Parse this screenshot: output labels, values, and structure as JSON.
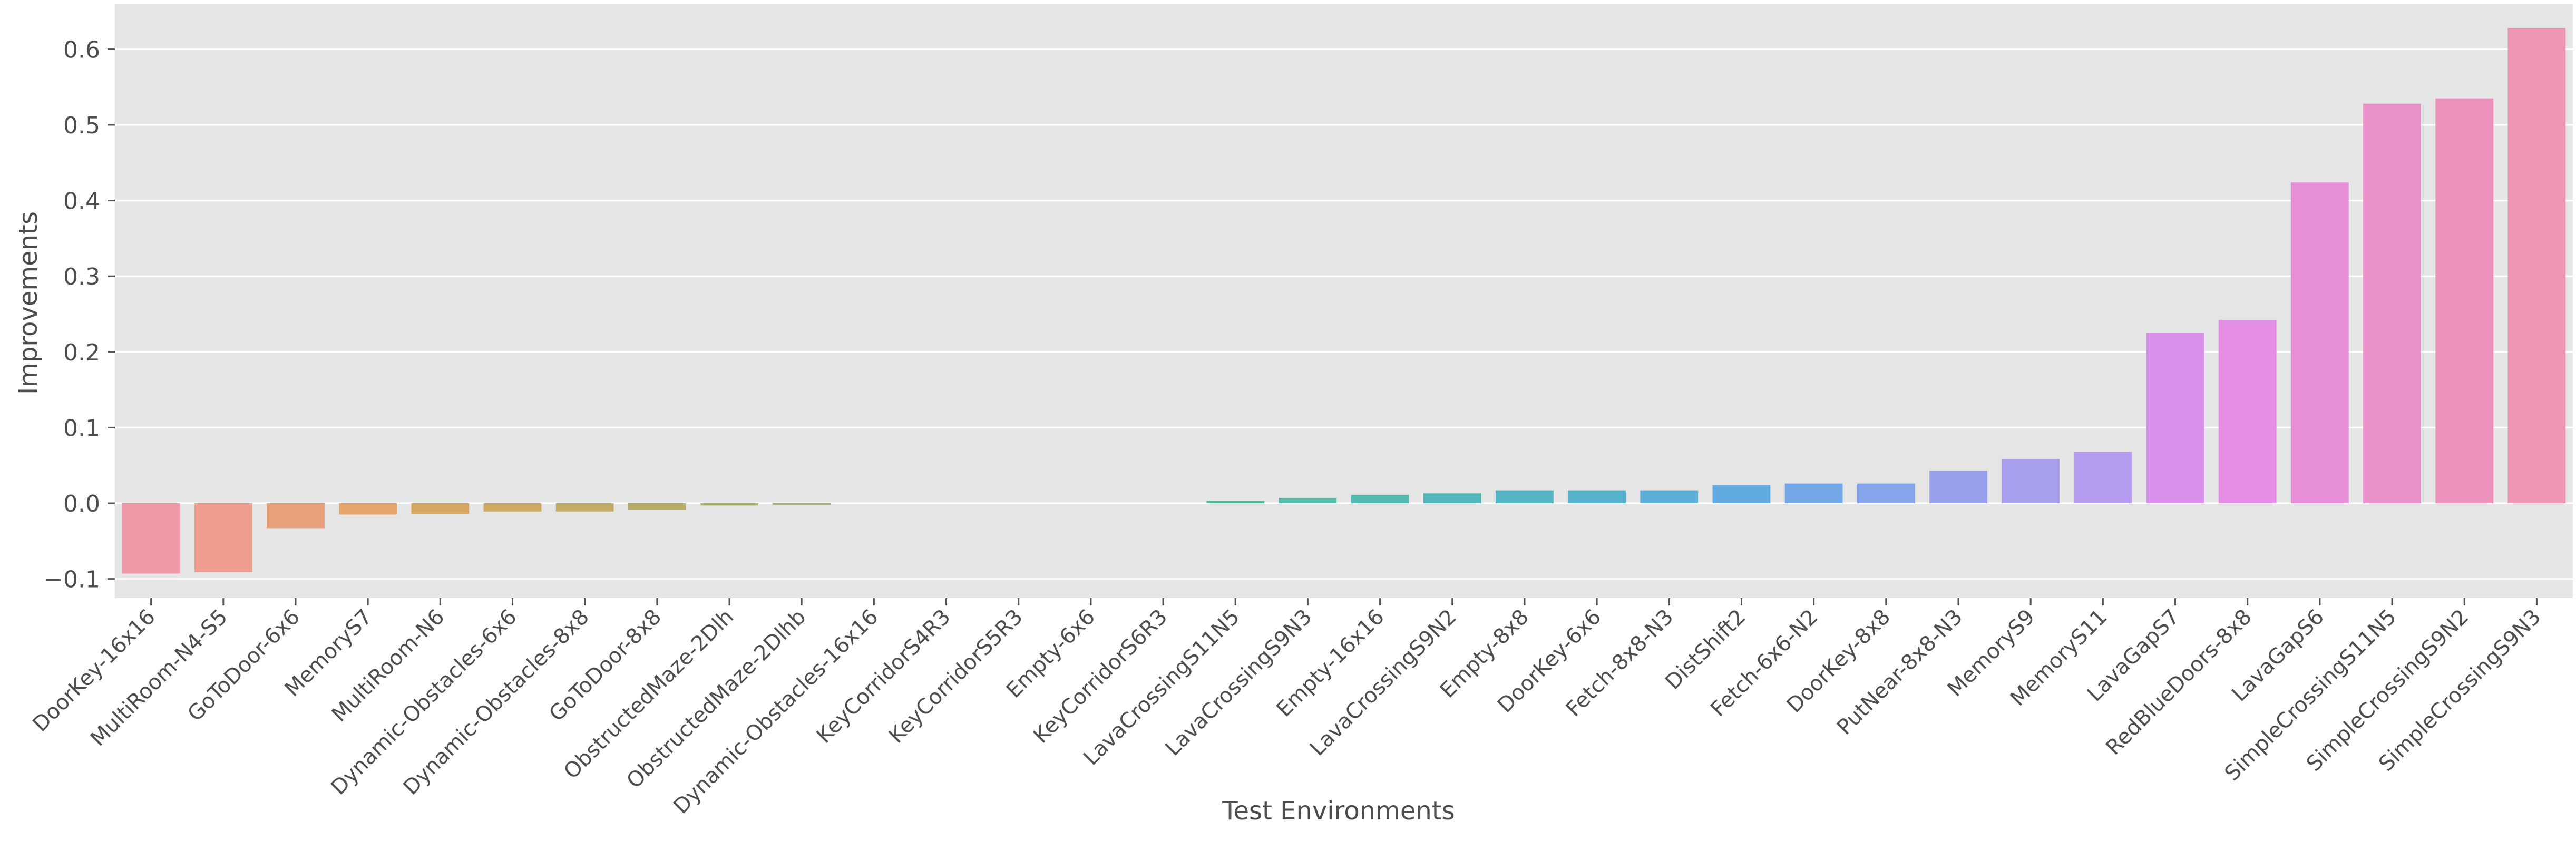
{
  "chart_data": {
    "type": "bar",
    "title": "",
    "xlabel": "Test Environments",
    "ylabel": "Improvements",
    "ylim": [
      -0.13,
      0.655
    ],
    "yticks": [
      -0.1,
      0.0,
      0.1,
      0.2,
      0.3,
      0.4,
      0.5,
      0.6
    ],
    "ytick_labels": [
      "−0.1",
      "0.0",
      "0.1",
      "0.2",
      "0.3",
      "0.4",
      "0.5",
      "0.6"
    ],
    "grid": true,
    "legend": "none",
    "categories": [
      "DoorKey-16x16",
      "MultiRoom-N4-S5",
      "GoToDoor-6x6",
      "MemoryS7",
      "MultiRoom-N6",
      "Dynamic-Obstacles-6x6",
      "Dynamic-Obstacles-8x8",
      "GoToDoor-8x8",
      "ObstructedMaze-2Dlh",
      "ObstructedMaze-2Dlhb",
      "Dynamic-Obstacles-16x16",
      "KeyCorridorS4R3",
      "KeyCorridorS5R3",
      "Empty-6x6",
      "KeyCorridorS6R3",
      "LavaCrossingS11N5",
      "LavaCrossingS9N3",
      "Empty-16x16",
      "LavaCrossingS9N2",
      "Empty-8x8",
      "DoorKey-6x6",
      "Fetch-8x8-N3",
      "DistShift2",
      "Fetch-6x6-N2",
      "DoorKey-8x8",
      "PutNear-8x8-N3",
      "MemoryS9",
      "MemoryS11",
      "LavaGapS7",
      "RedBlueDoors-8x8",
      "LavaGapS6",
      "SimpleCrossingS11N5",
      "SimpleCrossingS9N2",
      "SimpleCrossingS9N3"
    ],
    "values": [
      -0.093,
      -0.091,
      -0.033,
      -0.015,
      -0.014,
      -0.011,
      -0.011,
      -0.009,
      -0.003,
      -0.002,
      0.0,
      0.0,
      0.0,
      0.0,
      0.0,
      0.003,
      0.007,
      0.011,
      0.013,
      0.017,
      0.017,
      0.017,
      0.024,
      0.026,
      0.026,
      0.043,
      0.058,
      0.068,
      0.225,
      0.242,
      0.424,
      0.528,
      0.535,
      0.628
    ],
    "colors": [
      "#ef9aa6",
      "#ee9c8c",
      "#e8a07a",
      "#e3a56a",
      "#d7a863",
      "#cda966",
      "#c2ab68",
      "#b6ad68",
      "#a9b16a",
      "#9db46b",
      "#8fb66c",
      "#7fb96f",
      "#6bbb75",
      "#58bc82",
      "#54bc90",
      "#52bb9c",
      "#52baa7",
      "#52b9b1",
      "#53b7bb",
      "#54b4c4",
      "#56b1cd",
      "#5aaed8",
      "#61aae2",
      "#72a7e8",
      "#86a4ec",
      "#98a1ee",
      "#a89eee",
      "#b69cee",
      "#d990ea",
      "#e48de4",
      "#e68ed6",
      "#ea90c8",
      "#ec92bc",
      "#ed95b1"
    ]
  }
}
